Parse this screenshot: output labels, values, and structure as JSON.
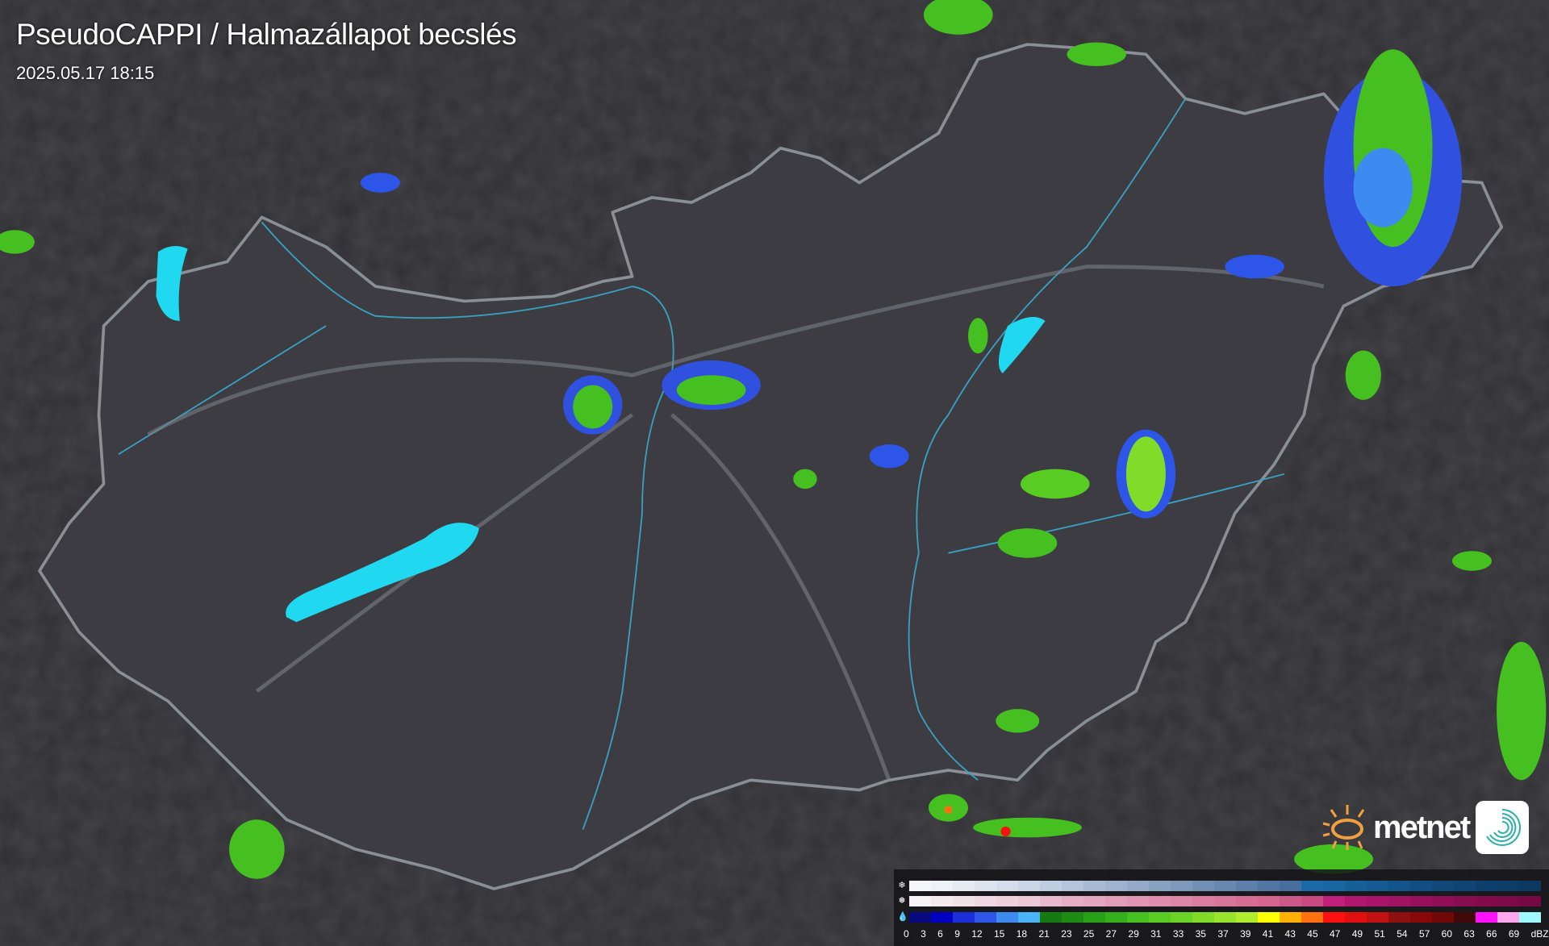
{
  "header": {
    "title": "PseudoCAPPI  / Halmazállapot becslés",
    "timestamp": "2025.05.17 18:15"
  },
  "logo": {
    "text": "metnet",
    "sun_color": "#f0a040",
    "badge_color": "#2ab0a8"
  },
  "map": {
    "background": "#303034",
    "country_fill": "#3c3c42",
    "border_color": "#8a8f96",
    "river_color": "#3aa0c0",
    "lake_color": "#20d8f0"
  },
  "legend": {
    "snow_icon": "snowflake-icon",
    "mixed_icon": "sleet-icon",
    "rain_icon": "raindrop-icon",
    "snow_colors": [
      "#f4f6f8",
      "#eef1f5",
      "#e6ebf2",
      "#dde4ee",
      "#d4dde9",
      "#cad5e5",
      "#bfcde0",
      "#b4c4da",
      "#a9bbd4",
      "#9fb3ce",
      "#94aac8",
      "#89a2c2",
      "#7e99bc",
      "#7390b6",
      "#6888b0",
      "#5d7faa",
      "#5276a4",
      "#476e9e",
      "#1a6aa8",
      "#1866a2",
      "#16609a",
      "#155a92",
      "#13548a",
      "#124e82",
      "#10487a",
      "#0f4474",
      "#0e406e",
      "#0d3c68",
      "#0c3862"
    ],
    "mixed_colors": [
      "#f6f4f5",
      "#f4eaee",
      "#f2e2e8",
      "#f0d8e2",
      "#eed0dc",
      "#ecc8d6",
      "#e8b8cc",
      "#e6aec4",
      "#e4a6be",
      "#e29eb8",
      "#e096b2",
      "#de8eac",
      "#dc86a6",
      "#da7ea0",
      "#d8769a",
      "#d66e94",
      "#d4668e",
      "#cc5888",
      "#c84a80",
      "#c0207a",
      "#b01870",
      "#a81468",
      "#a01262",
      "#98105c",
      "#900e56",
      "#880c50",
      "#820b4c",
      "#7c0a48",
      "#760944"
    ],
    "rain_colors": [
      "#0a0a80",
      "#0000c0",
      "#1a2fd8",
      "#2d55e8",
      "#3d8af0",
      "#4ab4f8",
      "#157a10",
      "#1e8c14",
      "#27a018",
      "#35b01c",
      "#45c020",
      "#58cc22",
      "#6ad426",
      "#80dc28",
      "#98e42c",
      "#b0ec30",
      "#ffff00",
      "#ffb000",
      "#ff7010",
      "#ff1010",
      "#e01010",
      "#c01010",
      "#901010",
      "#880808",
      "#700808",
      "#400808",
      "#ff10ff",
      "#ffa8f0",
      "#a0f8ff"
    ],
    "labels": [
      "0",
      "3",
      "6",
      "9",
      "12",
      "15",
      "18",
      "21",
      "23",
      "25",
      "27",
      "29",
      "31",
      "33",
      "35",
      "37",
      "39",
      "41",
      "43",
      "45",
      "47",
      "49",
      "51",
      "54",
      "57",
      "60",
      "63",
      "66",
      "69",
      "dBZ"
    ]
  }
}
